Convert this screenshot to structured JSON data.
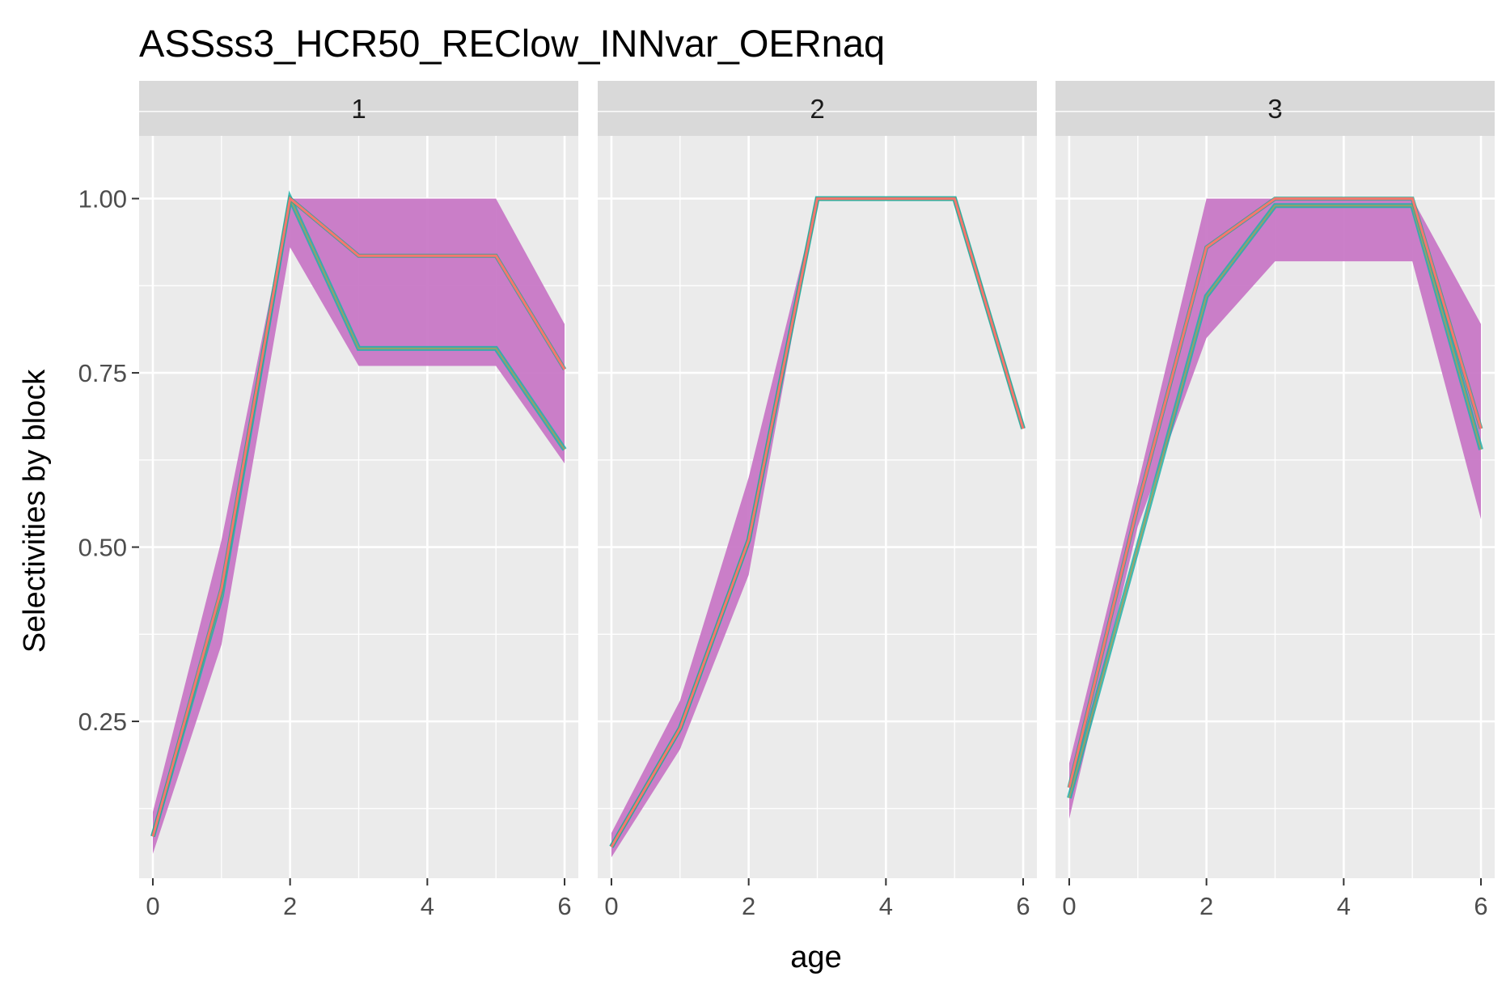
{
  "chart_data": {
    "type": "line",
    "title": "ASSss3_HCR50_REClow_INNvar_OERnaq",
    "xlabel": "age",
    "ylabel": "Selectivities by block",
    "xlim": [
      -0.2,
      6.2
    ],
    "ylim": [
      0.025,
      1.09
    ],
    "x_ticks": [
      0,
      2,
      4,
      6
    ],
    "x_tick_labels": [
      "0",
      "2",
      "4",
      "6"
    ],
    "y_ticks": [
      0.25,
      0.5,
      0.75,
      1.0
    ],
    "y_tick_labels": [
      "0.25",
      "0.50",
      "0.75",
      "1.00"
    ],
    "grid": true,
    "panel_background": "#ebebeb",
    "strip_background": "#d9d9d9",
    "band_color": "#c878c6",
    "line_color": "#f8766d",
    "panels": [
      {
        "strip_label": "1",
        "x": [
          0,
          1,
          2,
          3,
          4,
          5,
          6
        ],
        "upper": [
          0.12,
          0.51,
          1.0,
          1.0,
          1.0,
          1.0,
          0.82
        ],
        "lower": [
          0.06,
          0.36,
          0.93,
          0.76,
          0.76,
          0.76,
          0.62
        ],
        "median": [
          0.085,
          0.44,
          1.0,
          0.918,
          0.918,
          0.918,
          0.755
        ],
        "low_cluster": [
          0.085,
          0.43,
          1.0,
          0.785,
          0.785,
          0.785,
          0.64
        ]
      },
      {
        "strip_label": "2",
        "x": [
          0,
          1,
          2,
          3,
          4,
          5,
          6
        ],
        "upper": [
          0.09,
          0.28,
          0.6,
          1.0,
          1.0,
          1.0,
          0.67
        ],
        "lower": [
          0.055,
          0.21,
          0.46,
          1.0,
          1.0,
          1.0,
          0.67
        ],
        "median": [
          0.07,
          0.24,
          0.51,
          1.0,
          1.0,
          1.0,
          0.67
        ],
        "low_cluster": [
          0.07,
          0.24,
          0.51,
          1.0,
          1.0,
          1.0,
          0.67
        ]
      },
      {
        "strip_label": "3",
        "x": [
          0,
          1,
          2,
          3,
          4,
          5,
          6
        ],
        "upper": [
          0.19,
          0.59,
          1.0,
          1.0,
          1.0,
          1.0,
          0.82
        ],
        "lower": [
          0.11,
          0.53,
          0.8,
          0.91,
          0.91,
          0.91,
          0.54
        ],
        "median": [
          0.155,
          0.56,
          0.93,
          1.0,
          1.0,
          1.0,
          0.67
        ],
        "low_cluster": [
          0.14,
          0.5,
          0.86,
          0.99,
          0.99,
          0.99,
          0.64
        ]
      }
    ]
  }
}
